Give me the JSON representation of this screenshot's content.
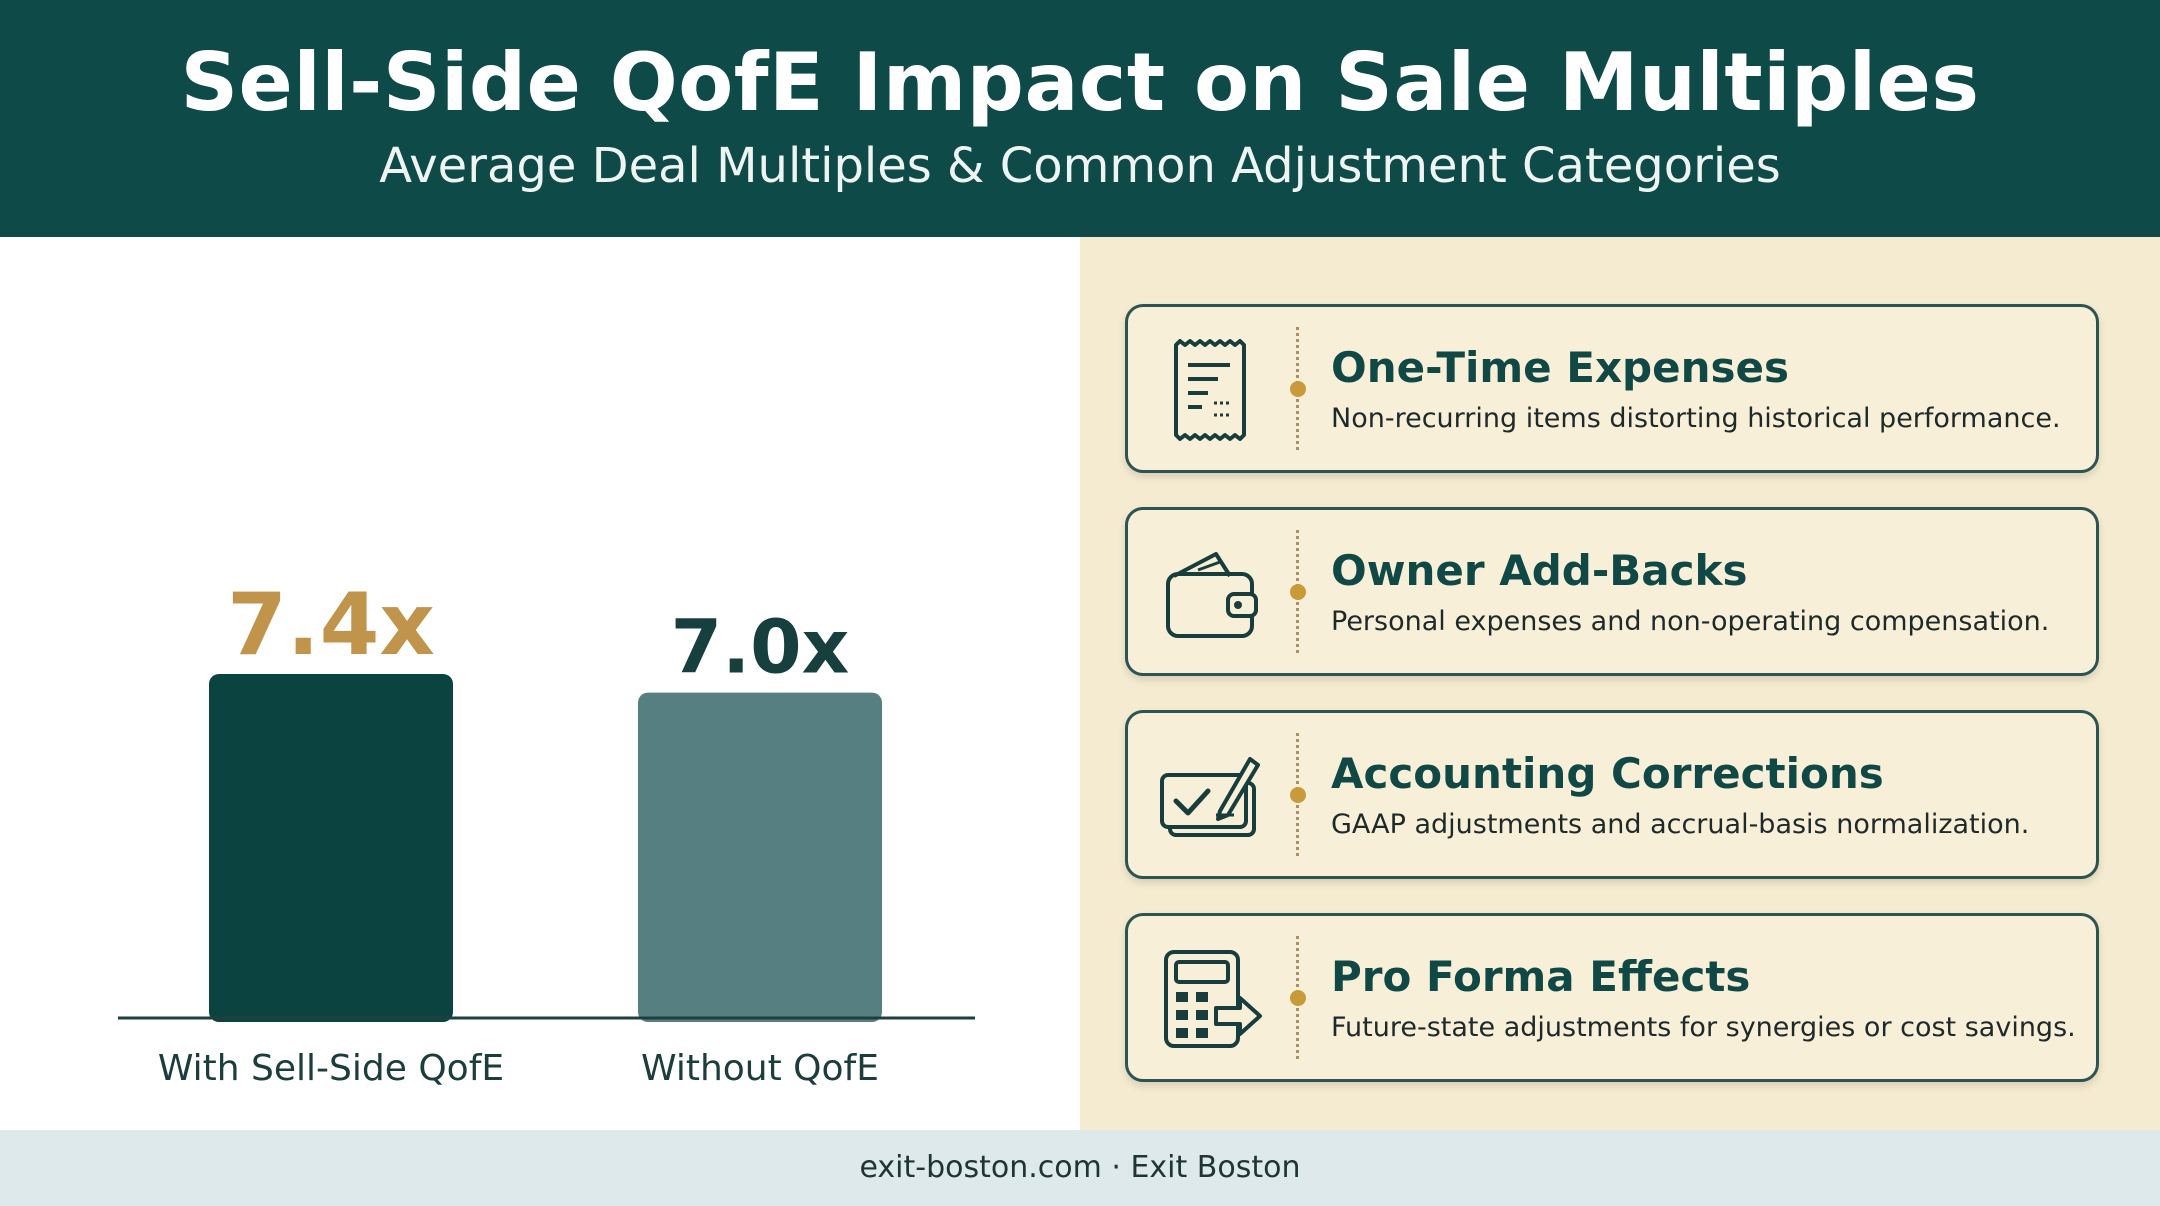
{
  "header": {
    "title": "Sell-Side QofE Impact on Sale Multiples",
    "subtitle": "Average Deal Multiples & Common Adjustment Categories"
  },
  "chart_data": {
    "type": "bar",
    "categories": [
      "With Sell-Side QofE",
      "Without QofE"
    ],
    "values": [
      7.4,
      7.0
    ],
    "data_labels": [
      "7.4x",
      "7.0x"
    ],
    "colors": [
      "#0b4341",
      "#567f81"
    ],
    "label_colors": [
      "#c0944a",
      "#163f3e"
    ],
    "ylim": [
      0,
      7.4
    ],
    "grid": false,
    "legend": "none"
  },
  "cards": [
    {
      "icon": "receipt-icon",
      "title": "One-Time Expenses",
      "description": "Non-recurring items distorting historical performance."
    },
    {
      "icon": "wallet-icon",
      "title": "Owner Add-Backs",
      "description": "Personal expenses and non-operating compensation."
    },
    {
      "icon": "check-document-icon",
      "title": "Accounting Corrections",
      "description": "GAAP adjustments and accrual-basis normalization."
    },
    {
      "icon": "calculator-icon",
      "title": "Pro Forma Effects",
      "description": "Future-state adjustments for synergies or cost savings."
    }
  ],
  "footer": {
    "text": "exit-boston.com · Exit Boston"
  }
}
